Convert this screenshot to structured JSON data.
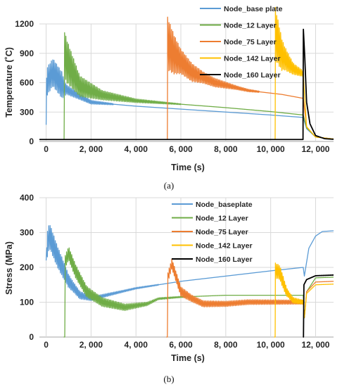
{
  "chart_data": [
    {
      "type": "line",
      "caption_letter": "a",
      "xlabel": "Time (s)",
      "ylabel": "Temperature (˚C)",
      "xlim": [
        -300,
        12800
      ],
      "ylim": [
        0,
        1200
      ],
      "xticks": [
        0,
        2000,
        4000,
        6000,
        8000,
        10000,
        12000
      ],
      "xtick_labels": [
        "0",
        "2, 000",
        "4, 000",
        "6, 000",
        "8, 000",
        "10, 000",
        "12, 000"
      ],
      "yticks": [
        0,
        300,
        600,
        900,
        1200
      ],
      "ytick_labels": [
        "0",
        "300",
        "600",
        "900",
        "1200"
      ],
      "grid": true,
      "legend_position": "top-right, outside plot",
      "series": [
        {
          "name": "Node_base plate",
          "color": "#5b9bd5",
          "points": [
            [
              0,
              20
            ],
            [
              20,
              600
            ],
            [
              300,
              700
            ],
            [
              800,
              540
            ],
            [
              2000,
              400
            ],
            [
              4000,
              360
            ],
            [
              6000,
              330
            ],
            [
              8000,
              300
            ],
            [
              10000,
              270
            ],
            [
              11450,
              245
            ],
            [
              11600,
              130
            ],
            [
              12000,
              45
            ],
            [
              12800,
              25
            ]
          ],
          "oscillation": [
            [
              0,
              300
            ],
            [
              700,
              280
            ],
            [
              900,
              100
            ],
            [
              2000,
              40
            ],
            [
              3000,
              15
            ]
          ]
        },
        {
          "name": "Node_12 Layer",
          "color": "#70ad47",
          "points": [
            [
              750,
              20
            ],
            [
              800,
              20
            ],
            [
              820,
              880
            ],
            [
              900,
              820
            ],
            [
              1500,
              560
            ],
            [
              2500,
              470
            ],
            [
              4000,
              415
            ],
            [
              6000,
              380
            ],
            [
              8000,
              345
            ],
            [
              10000,
              305
            ],
            [
              11450,
              270
            ],
            [
              11600,
              140
            ],
            [
              12000,
              45
            ],
            [
              12800,
              25
            ]
          ],
          "oscillation": [
            [
              820,
              500
            ],
            [
              1500,
              220
            ],
            [
              2500,
              100
            ],
            [
              4000,
              40
            ],
            [
              6000,
              10
            ]
          ]
        },
        {
          "name": "Node_75 Layer",
          "color": "#ed7d31",
          "points": [
            [
              5350,
              20
            ],
            [
              5400,
              20
            ],
            [
              5410,
              990
            ],
            [
              5700,
              880
            ],
            [
              6500,
              700
            ],
            [
              7500,
              600
            ],
            [
              9000,
              520
            ],
            [
              10500,
              480
            ],
            [
              11450,
              440
            ],
            [
              11600,
              150
            ],
            [
              12000,
              45
            ],
            [
              12800,
              25
            ]
          ],
          "oscillation": [
            [
              5410,
              560
            ],
            [
              6000,
              260
            ],
            [
              7000,
              120
            ],
            [
              8500,
              40
            ],
            [
              9500,
              15
            ]
          ]
        },
        {
          "name": "Node_142 Layer",
          "color": "#ffc000",
          "points": [
            [
              10150,
              20
            ],
            [
              10200,
              20
            ],
            [
              10210,
              1090
            ],
            [
              10500,
              880
            ],
            [
              11000,
              740
            ],
            [
              11450,
              690
            ],
            [
              11600,
              150
            ],
            [
              12000,
              45
            ],
            [
              12800,
              25
            ]
          ],
          "oscillation": [
            [
              10210,
              560
            ],
            [
              10600,
              260
            ],
            [
              11000,
              120
            ],
            [
              11450,
              60
            ]
          ]
        },
        {
          "name": "Node_160 Layer",
          "color": "#000000",
          "points": [
            [
              -300,
              20
            ],
            [
              11440,
              20
            ],
            [
              11455,
              1150
            ],
            [
              11520,
              850
            ],
            [
              11600,
              400
            ],
            [
              11750,
              180
            ],
            [
              12000,
              60
            ],
            [
              12400,
              28
            ],
            [
              12800,
              22
            ]
          ],
          "oscillation": []
        }
      ]
    },
    {
      "type": "line",
      "caption_letter": "b",
      "xlabel": "Time (s)",
      "ylabel": "Stress (MPa)",
      "xlim": [
        -300,
        12800
      ],
      "ylim": [
        0,
        400
      ],
      "xticks": [
        0,
        2000,
        4000,
        6000,
        8000,
        10000,
        12000
      ],
      "xtick_labels": [
        "0",
        "2, 000",
        "4, 000",
        "6, 000",
        "8, 000",
        "10, 000",
        "12, 000"
      ],
      "yticks": [
        0,
        100,
        200,
        300,
        400
      ],
      "ytick_labels": [
        "0",
        "100",
        "200",
        "300",
        "400"
      ],
      "grid": true,
      "legend_position": "top-right, inside plot",
      "series": [
        {
          "name": "Node_baseplate",
          "color": "#5b9bd5",
          "points": [
            [
              0,
              180
            ],
            [
              30,
              260
            ],
            [
              150,
              290
            ],
            [
              500,
              230
            ],
            [
              1000,
              160
            ],
            [
              1500,
              120
            ],
            [
              2000,
              110
            ],
            [
              3000,
              125
            ],
            [
              4000,
              140
            ],
            [
              5000,
              150
            ],
            [
              6000,
              160
            ],
            [
              8000,
              175
            ],
            [
              10000,
              190
            ],
            [
              11450,
              200
            ],
            [
              11500,
              175
            ],
            [
              11700,
              255
            ],
            [
              12000,
              290
            ],
            [
              12300,
              303
            ],
            [
              12800,
              305
            ]
          ],
          "oscillation": [
            [
              0,
              80
            ],
            [
              600,
              60
            ],
            [
              1200,
              30
            ],
            [
              2000,
              12
            ],
            [
              3500,
              6
            ],
            [
              5000,
              3
            ]
          ]
        },
        {
          "name": "Node_12 Layer",
          "color": "#70ad47",
          "points": [
            [
              780,
              0
            ],
            [
              830,
              0
            ],
            [
              850,
              215
            ],
            [
              1000,
              240
            ],
            [
              1300,
              190
            ],
            [
              1800,
              130
            ],
            [
              2500,
              100
            ],
            [
              3500,
              85
            ],
            [
              4500,
              95
            ],
            [
              5000,
              110
            ],
            [
              6000,
              115
            ],
            [
              8000,
              120
            ],
            [
              10000,
              120
            ],
            [
              11450,
              120
            ],
            [
              11500,
              55
            ],
            [
              11600,
              130
            ],
            [
              12000,
              170
            ],
            [
              12800,
              172
            ]
          ],
          "oscillation": [
            [
              850,
              40
            ],
            [
              1300,
              40
            ],
            [
              2000,
              30
            ],
            [
              3500,
              20
            ],
            [
              5000,
              6
            ],
            [
              6500,
              3
            ]
          ]
        },
        {
          "name": "Node_75 Layer",
          "color": "#ed7d31",
          "points": [
            [
              5350,
              0
            ],
            [
              5400,
              0
            ],
            [
              5420,
              170
            ],
            [
              5600,
              210
            ],
            [
              5800,
              170
            ],
            [
              6000,
              130
            ],
            [
              6500,
              110
            ],
            [
              7000,
              95
            ],
            [
              8000,
              95
            ],
            [
              9000,
              100
            ],
            [
              10000,
              100
            ],
            [
              11450,
              100
            ],
            [
              11500,
              55
            ],
            [
              11600,
              130
            ],
            [
              12000,
              158
            ],
            [
              12800,
              160
            ]
          ],
          "oscillation": [
            [
              5420,
              30
            ],
            [
              5900,
              30
            ],
            [
              6500,
              20
            ],
            [
              8000,
              16
            ],
            [
              11450,
              12
            ]
          ]
        },
        {
          "name": "Node_142 Layer",
          "color": "#ffc000",
          "points": [
            [
              10150,
              0
            ],
            [
              10200,
              0
            ],
            [
              10210,
              190
            ],
            [
              10400,
              185
            ],
            [
              10700,
              130
            ],
            [
              11000,
              105
            ],
            [
              11450,
              100
            ],
            [
              11500,
              55
            ],
            [
              11600,
              125
            ],
            [
              12000,
              150
            ],
            [
              12800,
              152
            ]
          ],
          "oscillation": [
            [
              10210,
              45
            ],
            [
              10500,
              40
            ],
            [
              10800,
              20
            ],
            [
              11450,
              12
            ]
          ]
        },
        {
          "name": "Node_160 Layer",
          "color": "#000000",
          "points": [
            [
              11440,
              0
            ],
            [
              11460,
              0
            ],
            [
              11480,
              150
            ],
            [
              11600,
              165
            ],
            [
              12000,
              176
            ],
            [
              12800,
              178
            ]
          ],
          "oscillation": []
        }
      ]
    }
  ],
  "captions": [
    "(a)",
    "(b)"
  ]
}
